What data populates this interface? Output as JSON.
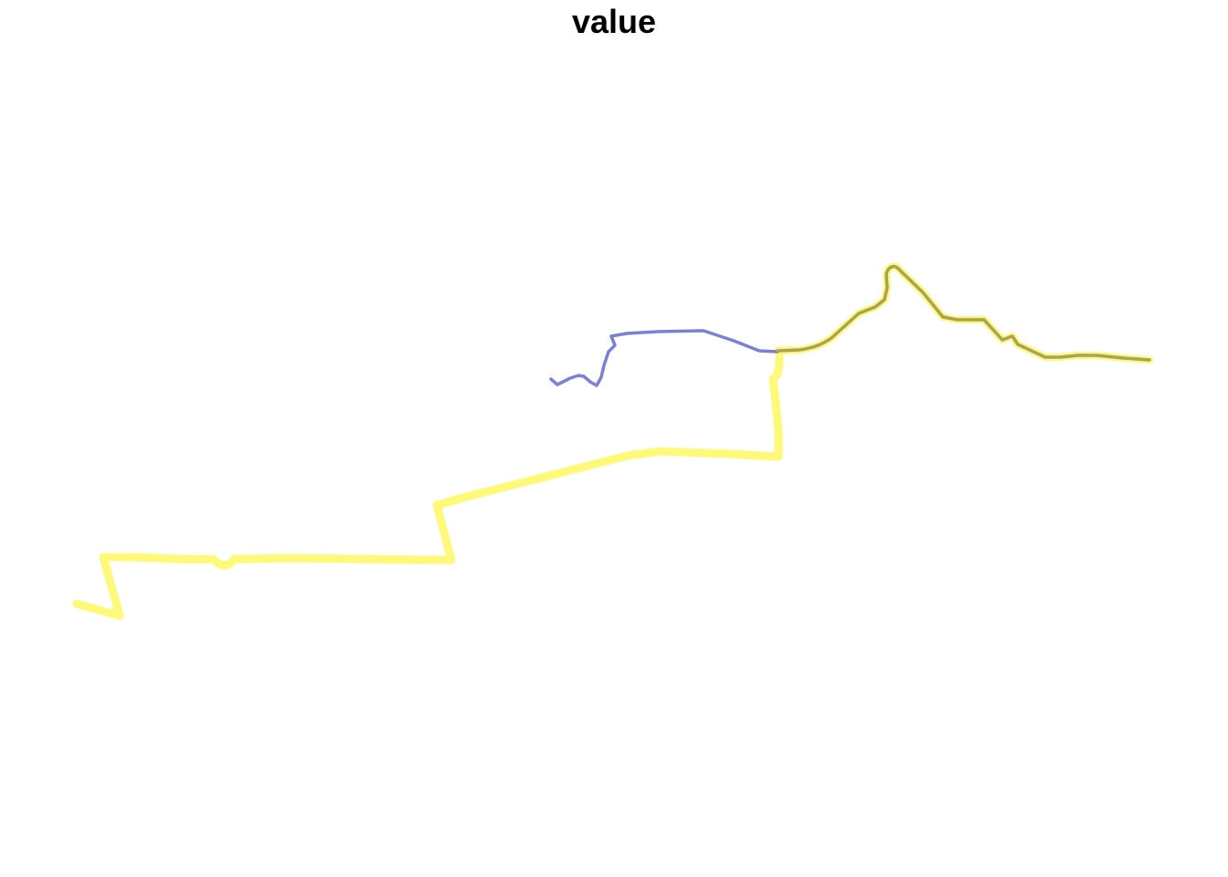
{
  "title": "value",
  "colors": {
    "background": "#ffffff",
    "title": "#000000",
    "thick_route": "#fff97a",
    "thin_route": "#7b7fd8",
    "overlap_route": "#a8a35a"
  }
}
